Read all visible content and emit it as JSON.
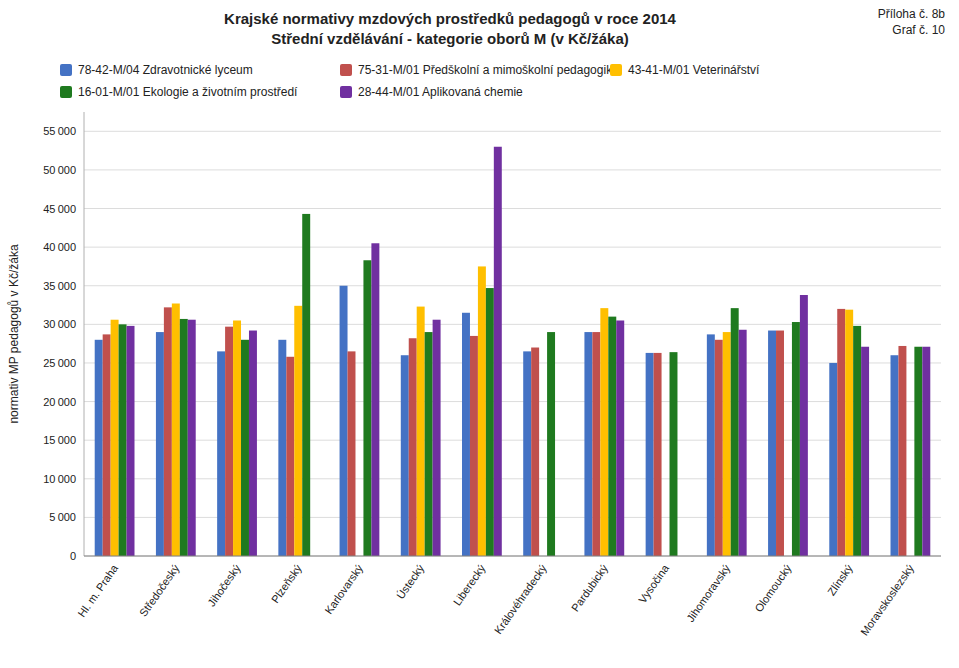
{
  "chart_data": {
    "type": "bar",
    "title": "Krajské normativy mzdových prostředků pedagogů v roce 2014",
    "subtitle": "Střední vzdělávání - kategorie oborů M (v Kč/žáka)",
    "annotations": [
      "Příloha č. 8b",
      "Graf č. 10"
    ],
    "ylabel": "normativ MP pedagogů v Kč/žáka",
    "categories": [
      "Hl. m. Praha",
      "Středočeský",
      "Jihočeský",
      "Plzeňský",
      "Karlovarský",
      "Ústecký",
      "Liberecký",
      "Královéhradecký",
      "Pardubický",
      "Vysočina",
      "Jihomoravský",
      "Olomoucký",
      "Zlínský",
      "Moravskoslezský"
    ],
    "series": [
      {
        "name": "78-42-M/04 Zdravotnické lyceum",
        "color": "#4472C4",
        "values": [
          28000,
          29000,
          26500,
          28000,
          35000,
          26000,
          31500,
          26500,
          29000,
          26300,
          28700,
          29200,
          25000,
          26000
        ]
      },
      {
        "name": "75-31-M/01 Předškolní a mimoškolní pedagogika",
        "color": "#C0504D",
        "values": [
          28700,
          32200,
          29700,
          25800,
          26500,
          28200,
          28500,
          27000,
          29000,
          26300,
          28000,
          29200,
          32000,
          27200
        ]
      },
      {
        "name": "43-41-M/01 Veterinářství",
        "color": "#FFBF00",
        "values": [
          30600,
          32700,
          30500,
          32400,
          null,
          32300,
          37500,
          null,
          32100,
          null,
          29000,
          null,
          31900,
          null
        ]
      },
      {
        "name": "16-01-M/01 Ekologie a životním prostředí",
        "color": "#1F7A1F",
        "values": [
          30000,
          30700,
          28000,
          44300,
          38300,
          29000,
          34700,
          29000,
          31000,
          26400,
          32100,
          30300,
          29800,
          27100
        ]
      },
      {
        "name": "28-44-M/01 Aplikovaná chemie",
        "color": "#7030A0",
        "values": [
          29800,
          30600,
          29200,
          null,
          40500,
          30600,
          53000,
          null,
          30500,
          null,
          29300,
          33800,
          27100,
          27100
        ]
      }
    ],
    "ylim": [
      0,
      57500
    ],
    "yticks": [
      0,
      {
        "value": 5000,
        "label": "5 000"
      },
      {
        "value": 10000,
        "label": "10 000"
      },
      {
        "value": 15000,
        "label": "15 000"
      },
      {
        "value": 20000,
        "label": "20 000"
      },
      {
        "value": 25000,
        "label": "25 000"
      },
      {
        "value": 30000,
        "label": "30 000"
      },
      {
        "value": 35000,
        "label": "35 000"
      },
      {
        "value": 40000,
        "label": "40 000"
      },
      {
        "value": 45000,
        "label": "45 000"
      },
      {
        "value": 50000,
        "label": "50 000"
      },
      {
        "value": 55000,
        "label": "55 000"
      }
    ],
    "grid": true,
    "legend": "top"
  }
}
